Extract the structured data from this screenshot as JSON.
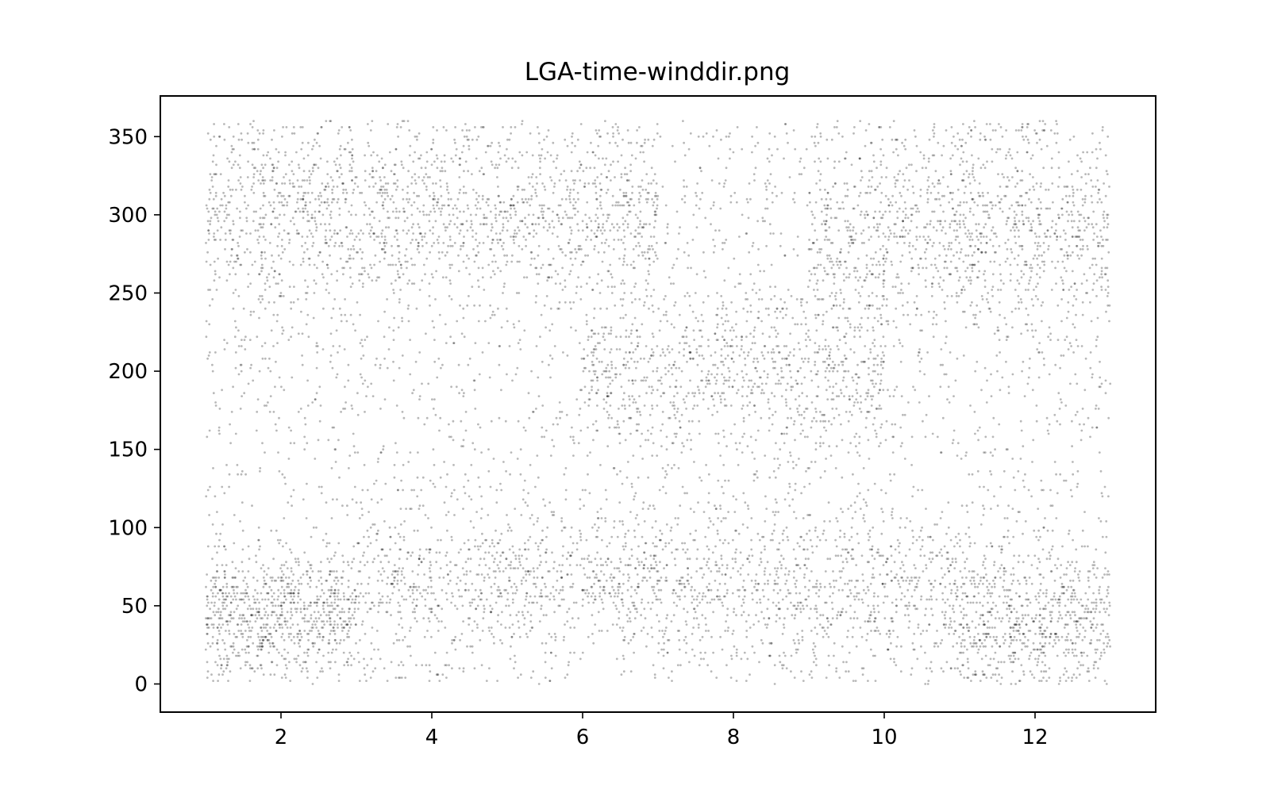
{
  "chart_data": {
    "type": "scatter",
    "title": "LGA-time-winddir.png",
    "xlabel": "",
    "ylabel": "",
    "xlim": [
      0.4,
      13.6
    ],
    "ylim": [
      -18,
      376
    ],
    "x_ticks": [
      2,
      4,
      6,
      8,
      10,
      12
    ],
    "y_ticks": [
      0,
      50,
      100,
      150,
      200,
      250,
      300,
      350
    ],
    "grid": false,
    "legend": "none",
    "marker_color": "#000000",
    "marker_alpha": 0.28,
    "x_range_of_data": [
      1,
      13
    ],
    "y_range_of_data": [
      0,
      360
    ],
    "approx_point_count": 9000,
    "density_bands": [
      {
        "x": [
          1,
          4.5
        ],
        "y_center": 300,
        "y_spread": 30,
        "weight": 0.45
      },
      {
        "x": [
          4.5,
          7
        ],
        "y_center": 300,
        "y_spread": 25,
        "weight": 0.25
      },
      {
        "x": [
          6,
          10
        ],
        "y_center": 200,
        "y_spread": 25,
        "weight": 0.35
      },
      {
        "x": [
          9,
          13
        ],
        "y_center": 290,
        "y_spread": 30,
        "weight": 0.45
      },
      {
        "x": [
          1,
          3
        ],
        "y_center": 45,
        "y_spread": 20,
        "weight": 0.35
      },
      {
        "x": [
          3,
          7
        ],
        "y_center": 65,
        "y_spread": 20,
        "weight": 0.35
      },
      {
        "x": [
          7,
          11
        ],
        "y_center": 60,
        "y_spread": 25,
        "weight": 0.35
      },
      {
        "x": [
          11,
          13
        ],
        "y_center": 40,
        "y_spread": 25,
        "weight": 0.3
      }
    ]
  }
}
